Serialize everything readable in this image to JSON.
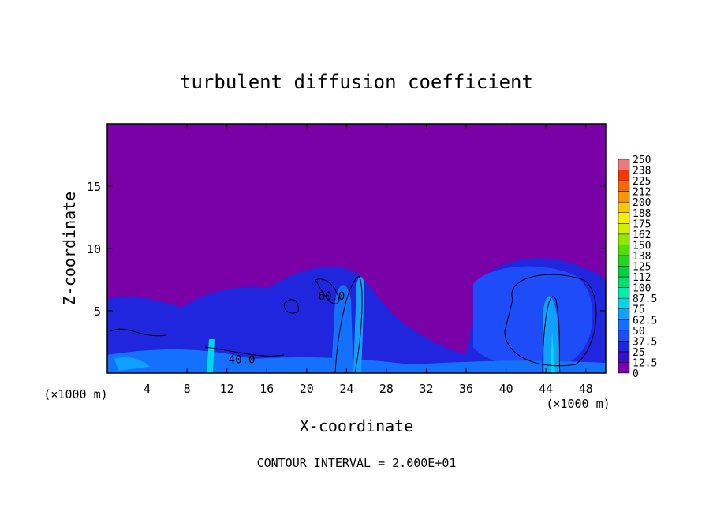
{
  "chart_data": {
    "type": "contour",
    "title": "turbulent diffusion coefficient",
    "x_label": "X-coordinate",
    "y_label": "Z-coordinate",
    "x_unit": "(×1000 m)",
    "y_unit": "(×1000 m)",
    "footer": "CONTOUR INTERVAL = 2.000E+01",
    "xlim": [
      0,
      50
    ],
    "xticks": [
      4,
      8,
      12,
      16,
      20,
      24,
      28,
      32,
      36,
      40,
      44,
      48
    ],
    "ylim": [
      0,
      20
    ],
    "yticks": [
      5,
      10,
      15
    ],
    "background_color": "#7a00a8",
    "colorbar": {
      "levels": [
        0,
        12.5,
        25,
        37.5,
        50,
        62.5,
        75,
        87.5,
        100,
        112,
        125,
        138,
        150,
        162,
        175,
        188,
        200,
        212,
        225,
        238,
        250
      ],
      "colors": [
        "#7a00a8",
        "#3a10c8",
        "#1a28e0",
        "#1e4cf8",
        "#1470ff",
        "#10a0ff",
        "#00d8e8",
        "#00eeb0",
        "#00e070",
        "#00d040",
        "#20d820",
        "#50e000",
        "#90e800",
        "#d0f000",
        "#f8f000",
        "#f8c800",
        "#f89800",
        "#f86800",
        "#f03800",
        "#f07878"
      ]
    },
    "contour_labels": [
      {
        "text": "60.0",
        "x": 22.5,
        "y": 6.2
      },
      {
        "text": "40.0",
        "x": 13.5,
        "y": 1.1
      }
    ]
  }
}
